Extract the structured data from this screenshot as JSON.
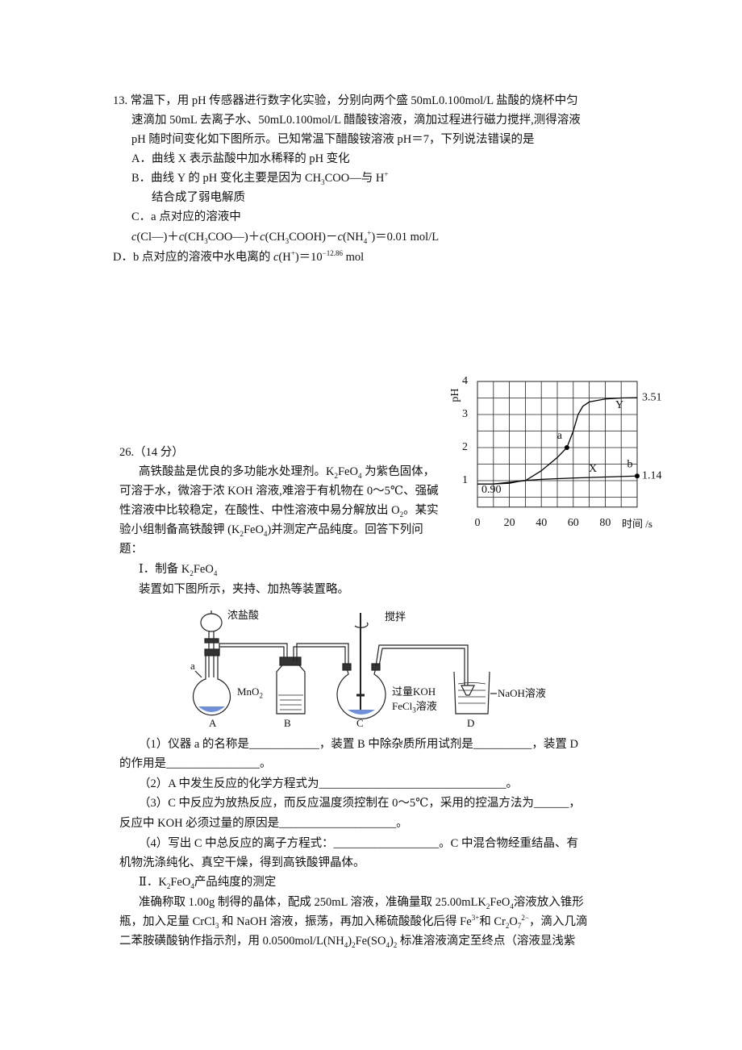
{
  "question13": {
    "lines": [
      [
        "13. 常温下，用 pH 传感器进行数字化实验，分别向两个盛 50mL0.100mol/L 盐酸的烧杯中匀"
      ],
      [
        "速滴加 50mL 去离子水、50mL0.100mol/L 醋酸铵溶液，滴加过程进行磁力搅拌,测得溶液"
      ],
      [
        "pH 随时间变化如下图所示。已知常温下醋酸铵溶液 pH＝7，下列说法错误的是"
      ],
      [
        "A．曲线 X 表示盐酸中加水稀释的 pH 变化"
      ],
      [
        "B．曲线 Y 的 pH 变化主要是因为 CH",
        {
          "sub": "3"
        },
        "COO—与 H",
        {
          "sup": "+"
        }
      ],
      [
        "结合成了弱电解质"
      ],
      [
        "C．a 点对应的溶液中"
      ],
      [
        {
          "i": "c"
        },
        "(Cl—)＋",
        {
          "i": "c"
        },
        "(CH",
        {
          "sub": "3"
        },
        "COO—)＋",
        {
          "i": "c"
        },
        "(CH",
        {
          "sub": "3"
        },
        "COOH)－",
        {
          "i": "c"
        },
        "(NH",
        {
          "sub": "4"
        },
        {
          "sup": "+"
        },
        ")＝0.01 mol/L"
      ],
      [
        "D．b 点对应的溶液中水电离的 ",
        {
          "i": "c"
        },
        "(H",
        {
          "sup": "+"
        },
        ")＝10",
        {
          "sup": "−12.86"
        },
        " mol"
      ]
    ]
  },
  "chart_data": {
    "type": "line",
    "y_label": "pH",
    "x_label": "时间 /s",
    "xlim": [
      0,
      100
    ],
    "ylim": [
      0.2,
      4
    ],
    "xticks": [
      0,
      20,
      40,
      60,
      80
    ],
    "yticks": [
      1,
      2,
      3,
      4
    ],
    "xgrid": [
      0,
      10,
      20,
      30,
      40,
      50,
      60,
      70,
      80,
      90,
      100
    ],
    "ygrid": [
      0.5,
      1,
      1.5,
      2,
      2.5,
      3,
      3.5,
      4
    ],
    "start_label": "0.90",
    "color": "#000000",
    "series": [
      {
        "name": "X",
        "x": [
          0,
          10,
          20,
          28,
          40,
          60,
          80,
          100
        ],
        "values": [
          0.9,
          0.9,
          0.92,
          1.0,
          1.04,
          1.08,
          1.11,
          1.14
        ],
        "point_labels": [
          null,
          null,
          null,
          null,
          null,
          null,
          null,
          "b"
        ]
      },
      {
        "name": "Y",
        "x": [
          0,
          10,
          20,
          30,
          40,
          50,
          56,
          60,
          63,
          66,
          70,
          80,
          90,
          100
        ],
        "values": [
          0.9,
          0.9,
          0.95,
          1.0,
          1.3,
          1.7,
          2.0,
          2.5,
          3.0,
          3.25,
          3.38,
          3.47,
          3.5,
          3.51
        ],
        "point_labels": [
          null,
          null,
          null,
          null,
          null,
          null,
          "a",
          null,
          null,
          null,
          null,
          null,
          null,
          null
        ]
      }
    ]
  },
  "question26": {
    "lines": [
      [
        "26.（14 分）"
      ],
      [
        "高铁酸盐是优良的多功能水处理剂。K",
        {
          "sub": "2"
        },
        "FeO",
        {
          "sub": "4"
        },
        " 为紫色固体，"
      ],
      [
        "可溶于水，微溶于浓 KOH 溶液,难溶于有机物在 0～5℃、强碱"
      ],
      [
        "性溶液中比较稳定，在酸性、中性溶液中易分解放出 O",
        {
          "sub": "2"
        },
        "。某实"
      ],
      [
        "验小组制备高铁酸钾 (K",
        {
          "sub": "2"
        },
        "FeO",
        {
          "sub": "4"
        },
        ")并测定产品纯度。回答下列问"
      ],
      [
        "题："
      ],
      [
        "Ⅰ．制备 K",
        {
          "sub": "2"
        },
        "FeO",
        {
          "sub": "4"
        }
      ],
      [
        "装置如下图所示，夹持、加热等装置略。"
      ],
      [
        "（1）仪器 a 的名称是____________，装置 B 中除杂质所用试剂是__________，装置 D"
      ],
      [
        "的作用是________________。"
      ],
      [
        "（2）A 中发生反应的化学方程式为________________________________。"
      ],
      [
        "（3）C 中反应为放热反应，而反应温度须控制在 0～5℃，采用的控温方法为______，"
      ],
      [
        "反应中 KOH 必须过量的原因是____________________。"
      ],
      [
        "（4）写出 C 中总反应的离子方程式：__________________。C 中混合物经重结晶、有"
      ],
      [
        "机物洗涤纯化、真空干燥，得到高铁酸钾晶体。"
      ],
      [
        "Ⅱ．K",
        {
          "sub": "2"
        },
        "FeO",
        {
          "sub": "4"
        },
        "产品纯度的测定"
      ],
      [
        "准确称取 1.00g 制得的晶体，配成 250mL 溶液，准确量取 25.00mLK",
        {
          "sub": "2"
        },
        "FeO",
        {
          "sub": "4"
        },
        "溶液放入锥形"
      ],
      [
        "瓶，加入足量 CrCl",
        {
          "sub": "3"
        },
        " 和 NaOH 溶液，振荡，再加入稀硫酸酸化后得 Fe",
        {
          "sup": "3+"
        },
        "和 Cr",
        {
          "sub": "2"
        },
        "O",
        {
          "sub": "7"
        },
        {
          "sup": "2−"
        },
        "，滴入几滴"
      ],
      [
        "二苯胺磺酸钠作指示剂，用 0.0500mol/L(NH",
        {
          "sub": "4"
        },
        ")",
        {
          "sub": "2"
        },
        "Fe(SO",
        {
          "sub": "4"
        },
        ")",
        {
          "sub": "2"
        },
        " 标准溶液滴定至终点（溶液显浅紫"
      ]
    ]
  },
  "apparatus": {
    "labels": [
      [
        "浓盐酸"
      ],
      [
        "搅拌"
      ],
      [
        "a"
      ],
      [
        "MnO",
        {
          "sub": "2"
        }
      ],
      [
        "过量KOH"
      ],
      [
        "FeCl",
        {
          "sub": "3"
        },
        "溶液"
      ],
      [
        "NaOH溶液"
      ],
      [
        "A"
      ],
      [
        "B"
      ],
      [
        "C"
      ],
      [
        "D"
      ]
    ]
  }
}
